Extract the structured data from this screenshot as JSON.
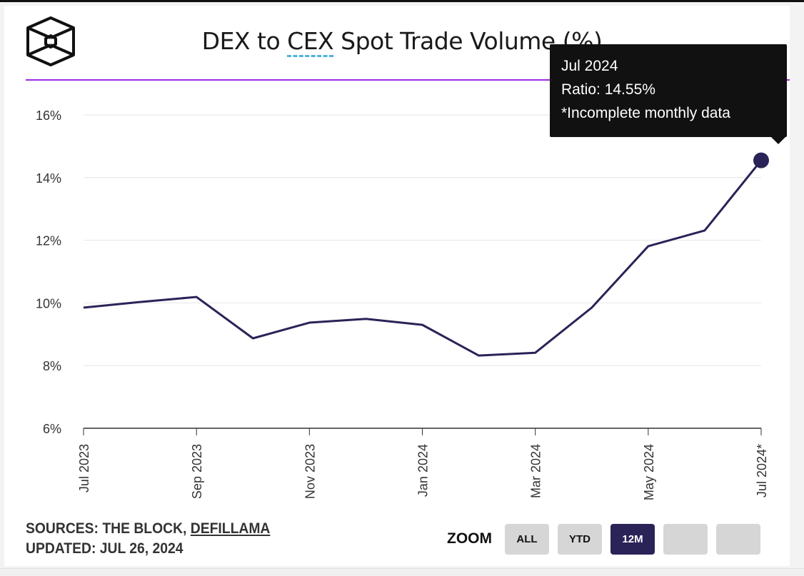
{
  "chart_data": {
    "type": "line",
    "title_parts": [
      "DEX to ",
      "CEX",
      " Spot Trade Volume (%)"
    ],
    "x": [
      "Jul 2023",
      "Aug 2023",
      "Sep 2023",
      "Oct 2023",
      "Nov 2023",
      "Dec 2023",
      "Jan 2024",
      "Feb 2024",
      "Mar 2024",
      "Apr 2024",
      "May 2024",
      "Jun 2024",
      "Jul 2024"
    ],
    "values": [
      9.85,
      10.03,
      10.19,
      8.87,
      9.37,
      9.49,
      9.3,
      8.32,
      8.41,
      9.85,
      11.81,
      12.31,
      14.55
    ],
    "x_tick_labels": [
      "Jul 2023",
      "Sep 2023",
      "Nov 2023",
      "Jan 2024",
      "Mar 2024",
      "May 2024",
      "Jul 2024*"
    ],
    "x_tick_indices": [
      0,
      2,
      4,
      6,
      8,
      10,
      12
    ],
    "y_ticks": [
      "6%",
      "8%",
      "10%",
      "12%",
      "14%",
      "16%"
    ],
    "ylim": [
      6,
      16.5
    ],
    "grid": true,
    "line_color": "#2a2357",
    "accent_color": "#9b2be6"
  },
  "tooltip": {
    "line1": "Jul 2024",
    "line2": "Ratio: 14.55%",
    "line3": "*Incomplete monthly data"
  },
  "footer": {
    "sources_prefix": "SOURCES: THE BLOCK, ",
    "sources_link": "DEFILLAMA",
    "updated": "UPDATED: JUL 26, 2024"
  },
  "zoom": {
    "label": "ZOOM",
    "buttons": [
      "ALL",
      "YTD",
      "12M",
      "",
      ""
    ],
    "active": "12M"
  },
  "logo": {
    "icon": "the-block-cube-logo"
  }
}
